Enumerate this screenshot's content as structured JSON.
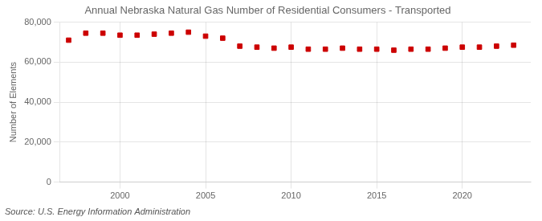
{
  "chart_data": {
    "type": "scatter",
    "title": "Annual Nebraska Natural Gas Number of Residential Consumers - Transported",
    "ylabel": "Number of Elements",
    "annotations": [
      "Source: U.S. Energy Information Administration"
    ],
    "x": [
      1997,
      1998,
      1999,
      2000,
      2001,
      2002,
      2003,
      2004,
      2005,
      2006,
      2007,
      2008,
      2009,
      2010,
      2011,
      2012,
      2013,
      2014,
      2015,
      2016,
      2017,
      2018,
      2019,
      2020,
      2021,
      2022,
      2023
    ],
    "values": [
      71000,
      74500,
      74500,
      73500,
      73500,
      74000,
      74500,
      75000,
      73000,
      72000,
      68000,
      67500,
      67000,
      67500,
      66500,
      66500,
      67000,
      66500,
      66500,
      66000,
      66500,
      66500,
      67000,
      67500,
      67500,
      68000,
      68500
    ],
    "color": "#cc0000",
    "marker": "square",
    "xlim": [
      1996.5,
      2024
    ],
    "ylim": [
      0,
      80000
    ],
    "xticks": [
      2000,
      2005,
      2010,
      2015,
      2020
    ],
    "yticks": [
      0,
      {
        "value": 20000,
        "label": "20,000"
      },
      {
        "value": 40000,
        "label": "40,000"
      },
      {
        "value": 60000,
        "label": "60,000"
      },
      {
        "value": 80000,
        "label": "80,000"
      }
    ],
    "grid": true
  }
}
